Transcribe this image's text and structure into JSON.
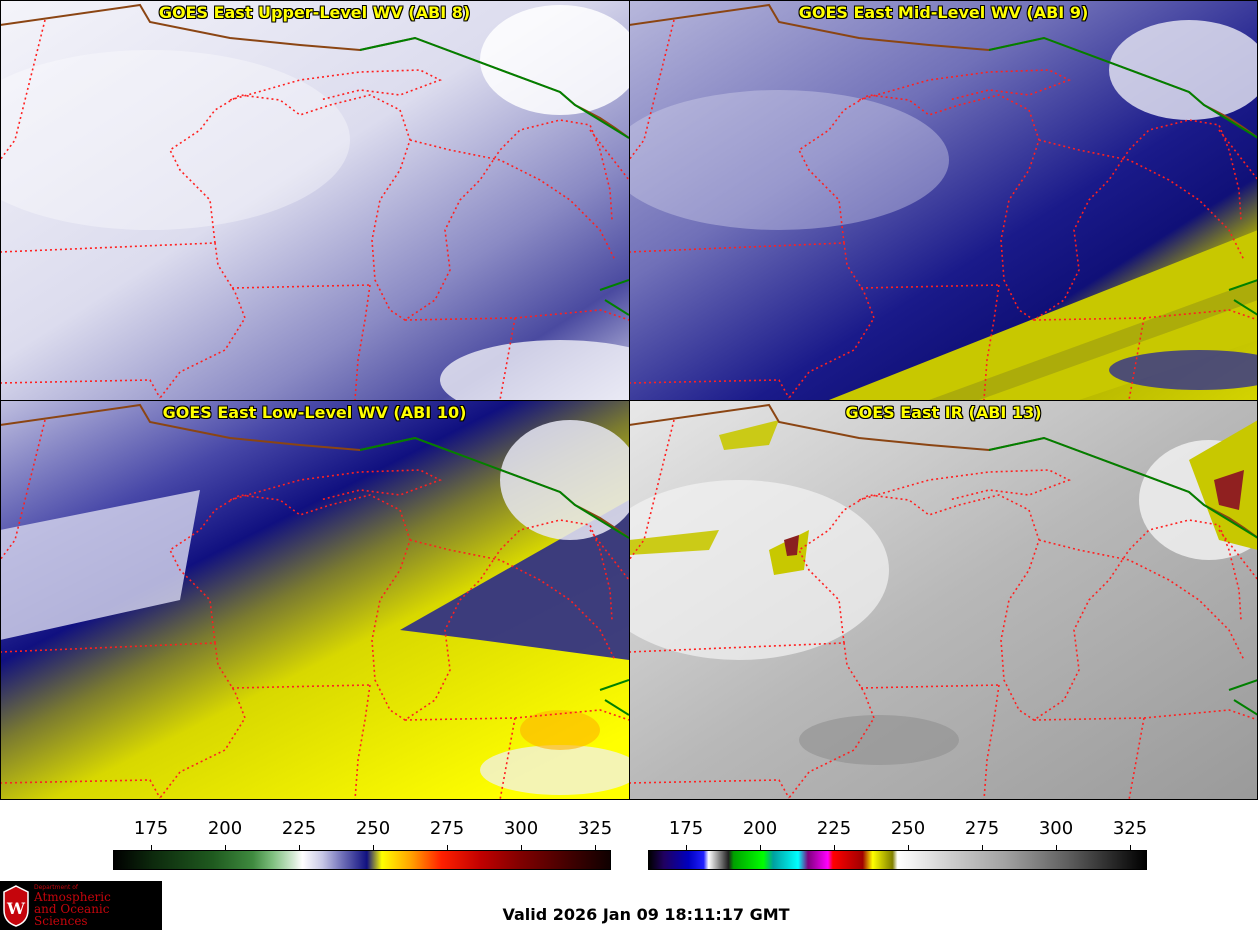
{
  "panels": [
    {
      "title": "GOES East Upper-Level WV (ABI 8)"
    },
    {
      "title": "GOES East Mid-Level WV (ABI 9)"
    },
    {
      "title": "GOES East Low-Level WV (ABI 10)"
    },
    {
      "title": "GOES East IR (ABI 13)"
    }
  ],
  "colorbars": [
    {
      "ticks": [
        "175",
        "200",
        "225",
        "250",
        "275",
        "300",
        "325"
      ]
    },
    {
      "ticks": [
        "175",
        "200",
        "225",
        "250",
        "275",
        "300",
        "325"
      ]
    }
  ],
  "logo": {
    "line1": "Department of",
    "line2": "Atmospheric",
    "line3": "and Oceanic Sciences"
  },
  "valid_text": "Valid 2026 Jan 09 18:11:17 GMT",
  "colors": {
    "title_text": "#ffff00",
    "state_borders": "#ff2020",
    "intl_border": "#008000",
    "logo_red": "#c5050c"
  }
}
